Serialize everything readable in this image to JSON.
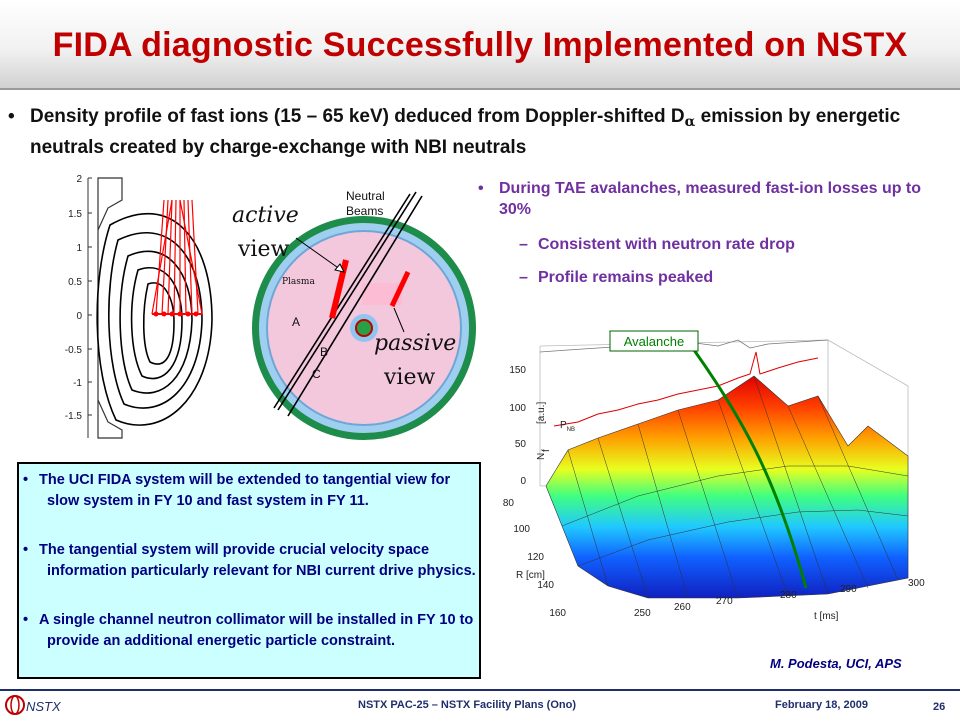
{
  "title": "FIDA diagnostic Successfully Implemented on NSTX",
  "main_bullet": {
    "text_before": "Density profile of fast ions (15 – 65 keV) deduced from Doppler-shifted D",
    "subscript_symbol": "α",
    "text_after": " emission by energetic neutrals created by charge-exchange with NBI neutrals"
  },
  "right_bullets": {
    "main": "During TAE avalanches, measured fast-ion losses up to 30%",
    "subs": [
      "Consistent with neutron rate drop",
      "Profile remains peaked"
    ]
  },
  "info_box": {
    "items": [
      "The UCI FIDA system will be extended to tangential view for slow system in FY 10 and fast system in FY 11.",
      "The tangential system will provide crucial velocity space information particularly relevant for NBI current drive physics.",
      "A single channel neutron collimator will be installed in FY 10 to provide an additional energetic particle constraint."
    ]
  },
  "flux_plot": {
    "y_ticks": [
      "2",
      "1.5",
      "1",
      "0.5",
      "0",
      "-0.5",
      "-1",
      "-1.5"
    ]
  },
  "topview": {
    "neutral_beams_label": [
      "Neutral",
      "Beams"
    ],
    "plasma_label": "Plasma",
    "active_view_label": [
      "active",
      "view"
    ],
    "passive_view_label": [
      "passive",
      "view"
    ],
    "chord_labels": [
      "A",
      "B",
      "C"
    ]
  },
  "surface_plot": {
    "avalanche_label": "Avalanche",
    "z_axis_label": "N",
    "z_axis_sub": "f",
    "z_units": "[a.u.]",
    "p_label": "P",
    "p_sub": "NB",
    "z_ticks": [
      "150",
      "100",
      "50",
      "0"
    ],
    "r_axis_label": "R [cm]",
    "r_ticks": [
      "80",
      "100",
      "120",
      "140",
      "160"
    ],
    "t_axis_label": "t [ms]",
    "t_ticks": [
      "250",
      "260",
      "270",
      "280",
      "290",
      "300"
    ]
  },
  "credit": "M. Podesta, UCI, APS",
  "footer": {
    "logo_text": "NSTX",
    "center": "NSTX PAC-25 – NSTX Facility Plans (Ono)",
    "date": "February 18, 2009",
    "page": "26"
  },
  "colors": {
    "title": "#c00000",
    "right_bullets": "#7030a0",
    "info_box_bg": "#ccffff",
    "info_box_text": "#000080",
    "footer": "#1f2f6b"
  }
}
